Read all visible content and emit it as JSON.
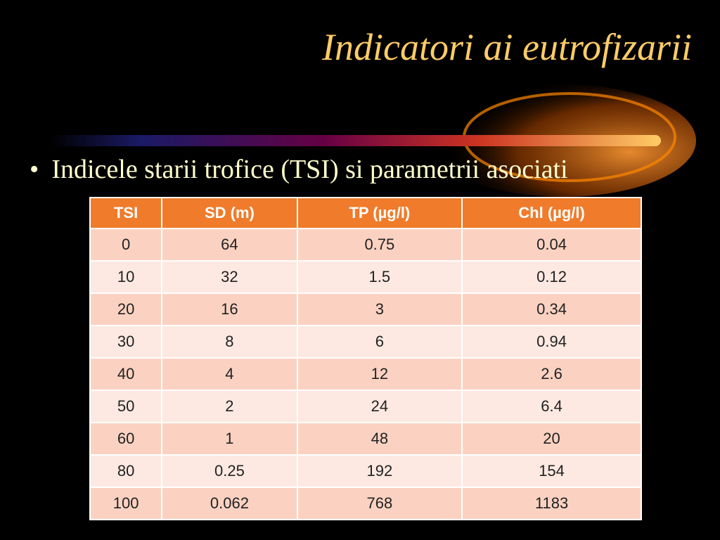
{
  "title": "Indicatori ai eutrofizarii",
  "bullets": [
    "Indicele starii trofice (TSI) si parametrii asociati"
  ],
  "table": {
    "header": [
      "TSI",
      "SD (m)",
      "TP (µg/l)",
      "Chl (µg/l)"
    ],
    "rows": [
      [
        "0",
        "64",
        "0.75",
        "0.04"
      ],
      [
        "10",
        "32",
        "1.5",
        "0.12"
      ],
      [
        "20",
        "16",
        "3",
        "0.34"
      ],
      [
        "30",
        "8",
        "6",
        "0.94"
      ],
      [
        "40",
        "4",
        "12",
        "2.6"
      ],
      [
        "50",
        "2",
        "24",
        "6.4"
      ],
      [
        "60",
        "1",
        "48",
        "20"
      ],
      [
        "80",
        "0.25",
        "192",
        "154"
      ],
      [
        "100",
        "0.062",
        "768",
        "1183"
      ]
    ]
  }
}
